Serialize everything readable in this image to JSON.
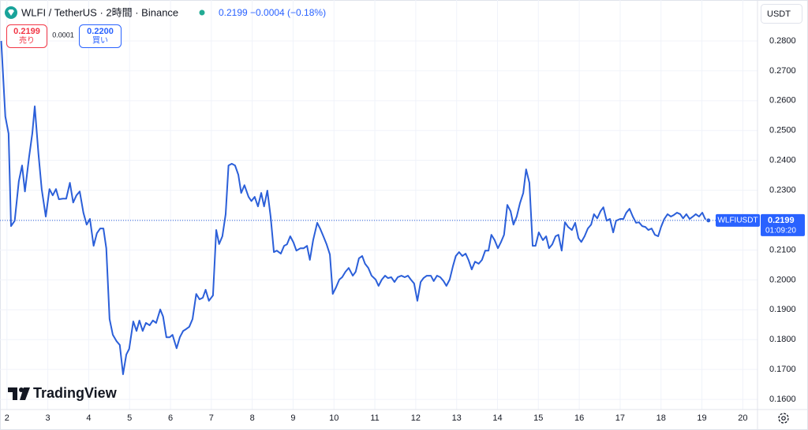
{
  "header": {
    "title": "WLFI / TetherUS · 2時間 · Binance",
    "price": "0.2199",
    "change": "−0.0004 (−0.18%)"
  },
  "trade": {
    "sell_price": "0.2199",
    "sell_label": "売り",
    "spread": "0.0001",
    "buy_price": "0.2200",
    "buy_label": "買い"
  },
  "currency": "USDT",
  "price_tag": {
    "symbol": "WLFIUSDT",
    "price": "0.2199",
    "countdown": "01:09:20"
  },
  "logo": "TradingView",
  "chart_data": {
    "type": "line",
    "color": "#2b5fd9",
    "grid": true,
    "last_price": 0.2199,
    "xlim": [
      1.83,
      20.36
    ],
    "ylim": [
      0.1566,
      0.2937
    ],
    "xticks": [
      2,
      3,
      4,
      5,
      6,
      7,
      8,
      9,
      10,
      11,
      12,
      13,
      14,
      15,
      16,
      17,
      18,
      19,
      20
    ],
    "yticks": [
      {
        "value": 0.16,
        "label": "0.1600"
      },
      {
        "value": 0.17,
        "label": "0.1700"
      },
      {
        "value": 0.18,
        "label": "0.1800"
      },
      {
        "value": 0.19,
        "label": "0.1900"
      },
      {
        "value": 0.2,
        "label": "0.2000"
      },
      {
        "value": 0.21,
        "label": "0.2100"
      },
      {
        "value": 0.22,
        "label": "0.2200"
      },
      {
        "value": 0.23,
        "label": "0.2300"
      },
      {
        "value": 0.24,
        "label": "0.2400"
      },
      {
        "value": 0.25,
        "label": "0.2500"
      },
      {
        "value": 0.26,
        "label": "0.2600"
      },
      {
        "value": 0.27,
        "label": "0.2700"
      },
      {
        "value": 0.28,
        "label": "0.2800"
      }
    ],
    "x": [
      1.86,
      1.96,
      2.04,
      2.1,
      2.19,
      2.29,
      2.37,
      2.44,
      2.54,
      2.62,
      2.68,
      2.77,
      2.85,
      2.95,
      3.04,
      3.12,
      3.2,
      3.27,
      3.37,
      3.45,
      3.54,
      3.62,
      3.7,
      3.78,
      3.87,
      3.95,
      4.03,
      4.12,
      4.2,
      4.28,
      4.36,
      4.43,
      4.51,
      4.59,
      4.68,
      4.76,
      4.84,
      4.92,
      4.99,
      5.09,
      5.17,
      5.24,
      5.32,
      5.4,
      5.49,
      5.57,
      5.65,
      5.75,
      5.82,
      5.9,
      5.98,
      6.05,
      6.15,
      6.23,
      6.31,
      6.38,
      6.46,
      6.54,
      6.63,
      6.71,
      6.79,
      6.86,
      6.94,
      7.04,
      7.12,
      7.19,
      7.27,
      7.35,
      7.42,
      7.5,
      7.58,
      7.66,
      7.73,
      7.81,
      7.91,
      7.98,
      8.06,
      8.14,
      8.22,
      8.29,
      8.37,
      8.45,
      8.53,
      8.6,
      8.7,
      8.78,
      8.85,
      8.93,
      9.01,
      9.08,
      9.18,
      9.26,
      9.34,
      9.41,
      9.49,
      9.59,
      9.66,
      9.74,
      9.82,
      9.9,
      9.97,
      10.05,
      10.13,
      10.2,
      10.28,
      10.36,
      10.46,
      10.53,
      10.61,
      10.69,
      10.76,
      10.84,
      10.92,
      11.02,
      11.09,
      11.17,
      11.25,
      11.32,
      11.4,
      11.48,
      11.56,
      11.65,
      11.73,
      11.81,
      11.88,
      11.96,
      12.04,
      12.12,
      12.19,
      12.27,
      12.37,
      12.44,
      12.52,
      12.6,
      12.68,
      12.75,
      12.83,
      12.91,
      12.98,
      13.06,
      13.14,
      13.22,
      13.29,
      13.37,
      13.45,
      13.54,
      13.62,
      13.7,
      13.78,
      13.85,
      13.93,
      14.01,
      14.08,
      14.16,
      14.24,
      14.32,
      14.39,
      14.47,
      14.55,
      14.63,
      14.7,
      14.78,
      14.86,
      14.93,
      15.01,
      15.11,
      15.19,
      15.26,
      15.34,
      15.42,
      15.49,
      15.57,
      15.65,
      15.73,
      15.82,
      15.9,
      15.98,
      16.05,
      16.13,
      16.21,
      16.29,
      16.36,
      16.44,
      16.52,
      16.59,
      16.67,
      16.75,
      16.83,
      16.9,
      17.0,
      17.08,
      17.15,
      17.23,
      17.31,
      17.39,
      17.46,
      17.54,
      17.62,
      17.69,
      17.77,
      17.85,
      17.93,
      18.0,
      18.08,
      18.16,
      18.24,
      18.31,
      18.39,
      18.47,
      18.54,
      18.62,
      18.7,
      18.78,
      18.85,
      18.93,
      19.01,
      19.08,
      19.16
    ],
    "values": [
      0.28,
      0.2547,
      0.249,
      0.218,
      0.2198,
      0.233,
      0.2383,
      0.2296,
      0.241,
      0.249,
      0.2581,
      0.2423,
      0.2304,
      0.2212,
      0.2304,
      0.2283,
      0.2304,
      0.227,
      0.2272,
      0.2272,
      0.2325,
      0.2259,
      0.2283,
      0.2296,
      0.2225,
      0.2185,
      0.2204,
      0.2114,
      0.2156,
      0.2172,
      0.2172,
      0.2106,
      0.1869,
      0.1816,
      0.1795,
      0.1782,
      0.1684,
      0.175,
      0.1769,
      0.1861,
      0.1829,
      0.1864,
      0.1829,
      0.1856,
      0.1848,
      0.1864,
      0.1856,
      0.1901,
      0.1877,
      0.1808,
      0.1808,
      0.1816,
      0.1771,
      0.1808,
      0.1829,
      0.1835,
      0.1843,
      0.1869,
      0.1953,
      0.1935,
      0.194,
      0.1967,
      0.193,
      0.1948,
      0.2167,
      0.212,
      0.2146,
      0.222,
      0.2383,
      0.2389,
      0.2383,
      0.2352,
      0.2291,
      0.2317,
      0.2278,
      0.2264,
      0.2278,
      0.2246,
      0.2291,
      0.2246,
      0.2299,
      0.2212,
      0.2093,
      0.2098,
      0.2088,
      0.2114,
      0.2119,
      0.2146,
      0.2125,
      0.2098,
      0.2106,
      0.2106,
      0.2114,
      0.2067,
      0.2133,
      0.2191,
      0.2172,
      0.2146,
      0.2119,
      0.2085,
      0.1953,
      0.1975,
      0.2001,
      0.2009,
      0.2027,
      0.204,
      0.2014,
      0.2027,
      0.2072,
      0.208,
      0.2054,
      0.204,
      0.2014,
      0.2001,
      0.198,
      0.2001,
      0.2014,
      0.2006,
      0.2009,
      0.1993,
      0.2009,
      0.2014,
      0.2009,
      0.2014,
      0.2001,
      0.1988,
      0.193,
      0.1993,
      0.2006,
      0.2014,
      0.2014,
      0.1996,
      0.2014,
      0.2009,
      0.1996,
      0.198,
      0.2001,
      0.2046,
      0.208,
      0.2093,
      0.208,
      0.2088,
      0.2067,
      0.2035,
      0.2061,
      0.2054,
      0.2067,
      0.2098,
      0.2098,
      0.2151,
      0.2133,
      0.2106,
      0.2125,
      0.2151,
      0.2251,
      0.223,
      0.2185,
      0.2212,
      0.2257,
      0.2291,
      0.237,
      0.2325,
      0.2114,
      0.2114,
      0.2159,
      0.2133,
      0.2146,
      0.2106,
      0.2119,
      0.2146,
      0.2151,
      0.2098,
      0.2193,
      0.2177,
      0.2167,
      0.2191,
      0.214,
      0.2127,
      0.2146,
      0.2172,
      0.2185,
      0.222,
      0.2206,
      0.223,
      0.2243,
      0.2198,
      0.2204,
      0.2159,
      0.2198,
      0.2204,
      0.2204,
      0.2225,
      0.2238,
      0.2212,
      0.2191,
      0.2193,
      0.218,
      0.2177,
      0.2167,
      0.2172,
      0.2151,
      0.2146,
      0.2177,
      0.2204,
      0.222,
      0.2212,
      0.2217,
      0.2225,
      0.222,
      0.2206,
      0.222,
      0.2204,
      0.2212,
      0.222,
      0.2212,
      0.2225,
      0.2204,
      0.2199
    ]
  }
}
